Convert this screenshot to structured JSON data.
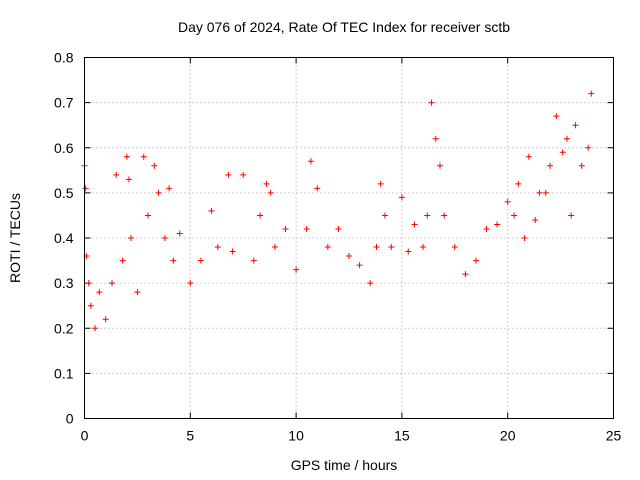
{
  "chart_data": {
    "type": "scatter",
    "title": "Day 076 of 2024, Rate Of TEC Index for receiver sctb",
    "xlabel": "GPS time / hours",
    "ylabel": "ROTI / TECUs",
    "xlim": [
      0,
      25
    ],
    "ylim": [
      0,
      0.8
    ],
    "xticks": [
      "0",
      "5",
      "10",
      "15",
      "20",
      "25"
    ],
    "yticks": [
      "0",
      "0.1",
      "0.2",
      "0.3",
      "0.4",
      "0.5",
      "0.6",
      "0.7",
      "0.8"
    ],
    "grid": true,
    "marker": "+",
    "color": "#ff0000",
    "series": [
      {
        "name": "ROTI",
        "x": [
          0.0,
          0.05,
          0.1,
          0.2,
          0.3,
          0.5,
          0.7,
          1.0,
          1.3,
          1.5,
          1.8,
          2.0,
          2.1,
          2.2,
          2.5,
          2.8,
          3.0,
          3.3,
          3.5,
          3.8,
          4.0,
          4.2,
          4.5,
          5.0,
          5.5,
          6.0,
          6.3,
          6.8,
          7.0,
          7.5,
          8.0,
          8.3,
          8.6,
          8.8,
          9.0,
          9.5,
          10.0,
          10.5,
          10.7,
          11.0,
          11.5,
          12.0,
          12.5,
          13.0,
          13.5,
          13.8,
          14.0,
          14.2,
          14.5,
          15.0,
          15.3,
          15.6,
          16.0,
          16.2,
          16.4,
          16.6,
          16.8,
          17.0,
          17.5,
          18.0,
          18.5,
          19.0,
          19.5,
          20.0,
          20.3,
          20.5,
          20.8,
          21.0,
          21.3,
          21.5,
          21.8,
          22.0,
          22.3,
          22.6,
          22.8,
          23.0,
          23.2,
          23.5,
          23.8,
          23.95
        ],
        "y": [
          0.56,
          0.51,
          0.36,
          0.3,
          0.25,
          0.2,
          0.28,
          0.22,
          0.3,
          0.54,
          0.35,
          0.58,
          0.53,
          0.4,
          0.28,
          0.58,
          0.45,
          0.56,
          0.5,
          0.4,
          0.51,
          0.35,
          0.41,
          0.3,
          0.35,
          0.46,
          0.38,
          0.54,
          0.37,
          0.54,
          0.35,
          0.45,
          0.52,
          0.5,
          0.38,
          0.42,
          0.33,
          0.42,
          0.57,
          0.51,
          0.38,
          0.42,
          0.36,
          0.34,
          0.3,
          0.38,
          0.52,
          0.45,
          0.38,
          0.49,
          0.37,
          0.43,
          0.38,
          0.45,
          0.7,
          0.62,
          0.56,
          0.45,
          0.38,
          0.32,
          0.35,
          0.42,
          0.43,
          0.48,
          0.45,
          0.52,
          0.4,
          0.58,
          0.44,
          0.5,
          0.5,
          0.56,
          0.67,
          0.59,
          0.62,
          0.45,
          0.65,
          0.56,
          0.6,
          0.72
        ]
      }
    ]
  }
}
